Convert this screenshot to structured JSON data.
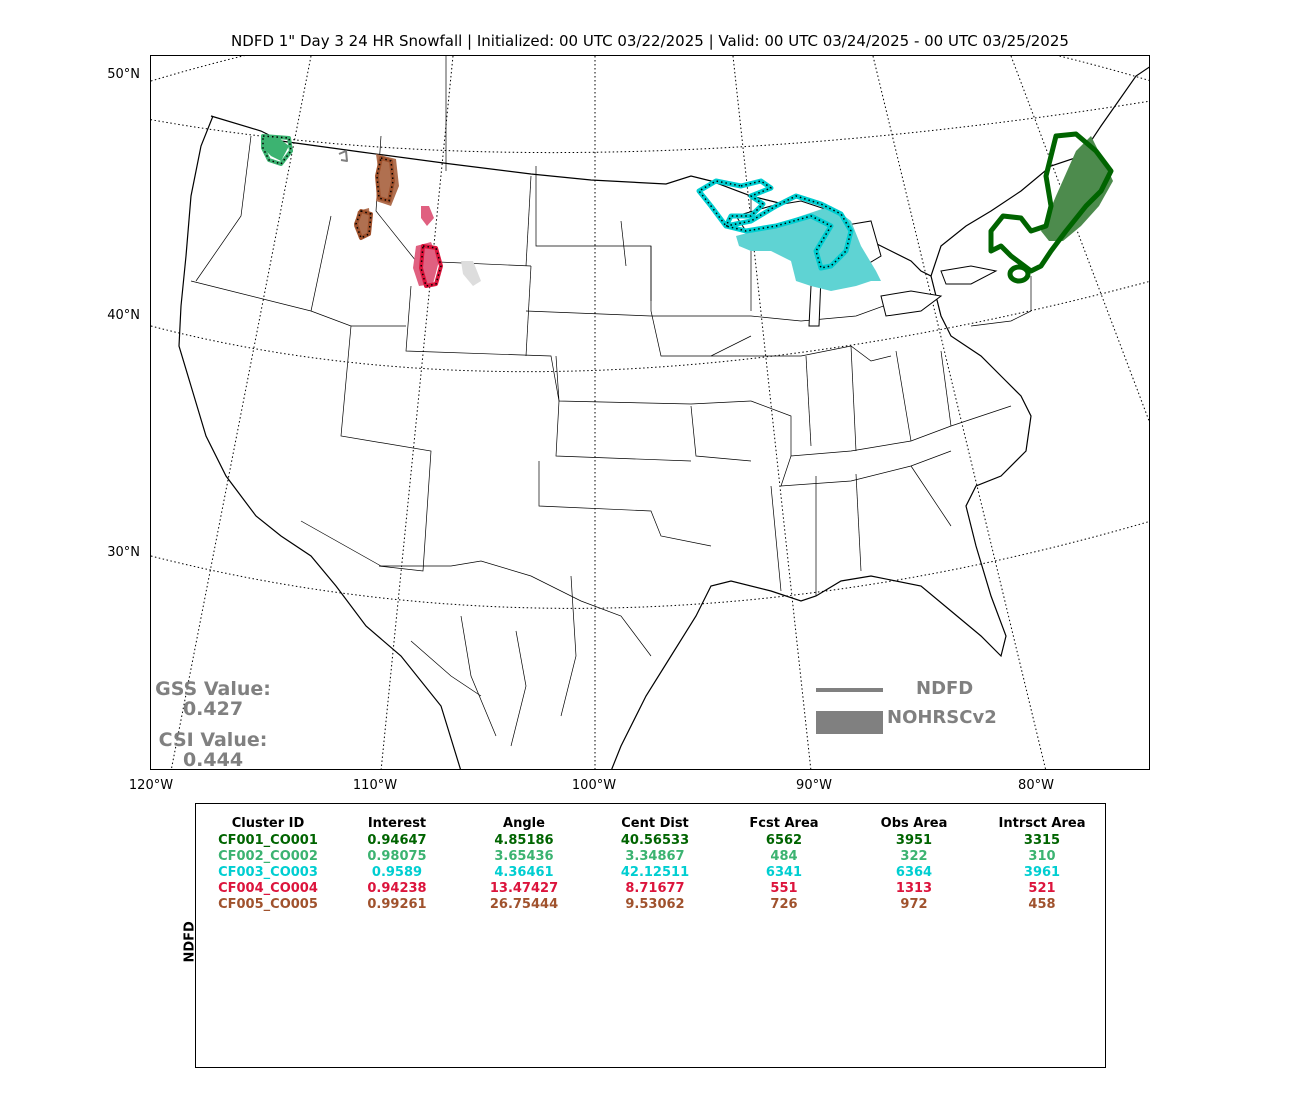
{
  "title": "NDFD 1\" Day 3 24 HR Snowfall | Initialized: 00 UTC 03/22/2025 | Valid: 00 UTC 03/24/2025 - 00 UTC 03/25/2025",
  "lat_labels": [
    "50°N",
    "40°N",
    "30°N"
  ],
  "lon_labels": [
    "120°W",
    "110°W",
    "100°W",
    "90°W",
    "80°W"
  ],
  "gss": {
    "label": "GSS Value:",
    "value": "0.427"
  },
  "csi": {
    "label": "CSI Value:",
    "value": "0.444"
  },
  "legend": {
    "forecast": "NDFD",
    "observed": "NOHRSCv2",
    "color": "#808080"
  },
  "table": {
    "side_label": "NDFD",
    "columns": [
      "Cluster ID",
      "Interest",
      "Angle",
      "Cent Dist",
      "Fcst Area",
      "Obs Area",
      "Intrsct Area"
    ],
    "rows": [
      {
        "color": "#006400",
        "cells": [
          "CF001_CO001",
          "0.94647",
          "4.85186",
          "40.56533",
          "6562",
          "3951",
          "3315"
        ]
      },
      {
        "color": "#3cb371",
        "cells": [
          "CF002_CO002",
          "0.98075",
          "3.65436",
          "3.34867",
          "484",
          "322",
          "310"
        ]
      },
      {
        "color": "#00ced1",
        "cells": [
          "CF003_CO003",
          "0.9589",
          "4.36461",
          "42.12511",
          "6341",
          "6364",
          "3961"
        ]
      },
      {
        "color": "#dc143c",
        "cells": [
          "CF004_CO004",
          "0.94238",
          "13.47427",
          "8.71677",
          "551",
          "1313",
          "521"
        ]
      },
      {
        "color": "#a0522d",
        "cells": [
          "CF005_CO005",
          "0.99261",
          "26.75444",
          "9.53062",
          "726",
          "972",
          "458"
        ]
      }
    ]
  },
  "clusters": [
    {
      "id": "CF001_CO001",
      "color": "#006400",
      "fill": "#4d8b4d",
      "region": "New England"
    },
    {
      "id": "CF002_CO002",
      "color": "#3cb371",
      "fill": "#3cb371",
      "region": "Washington Cascades"
    },
    {
      "id": "CF003_CO003",
      "color": "#00ced1",
      "fill": "#5fd3d3",
      "region": "Upper Midwest / Great Lakes"
    },
    {
      "id": "CF004_CO004",
      "color": "#dc143c",
      "fill": "#e06080",
      "region": "Wyoming"
    },
    {
      "id": "CF005_CO005",
      "color": "#a0522d",
      "fill": "#b07050",
      "region": "Idaho / Montana"
    }
  ]
}
